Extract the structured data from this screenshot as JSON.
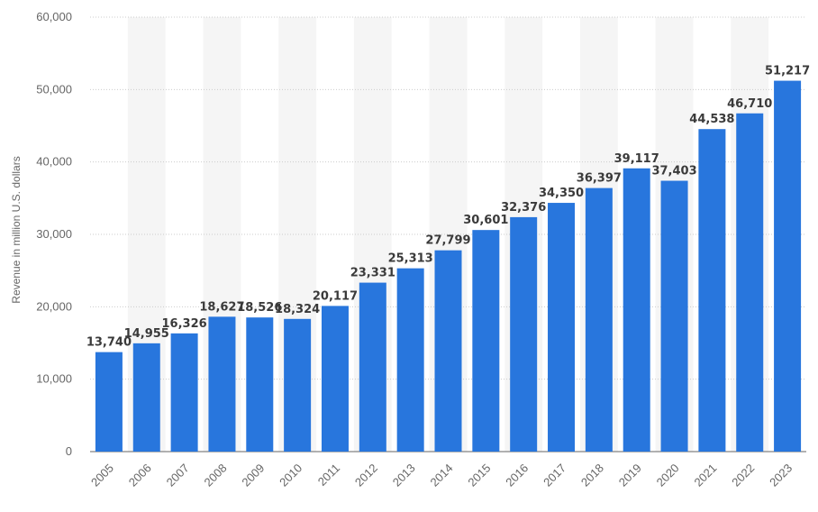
{
  "chart_data": {
    "type": "bar",
    "title": "",
    "xlabel": "",
    "ylabel": "Revenue in million U.S. dollars",
    "ylim": [
      0,
      60000
    ],
    "yticks": [
      0,
      10000,
      20000,
      30000,
      40000,
      50000,
      60000
    ],
    "ytick_labels": [
      "0",
      "10,000",
      "20,000",
      "30,000",
      "40,000",
      "50,000",
      "60,000"
    ],
    "grid": true,
    "legend": "none",
    "categories": [
      "2005",
      "2006",
      "2007",
      "2008",
      "2009",
      "2010",
      "2011",
      "2012",
      "2013",
      "2014",
      "2015",
      "2016",
      "2017",
      "2018",
      "2019",
      "2020",
      "2021",
      "2022",
      "2023"
    ],
    "values": [
      13740,
      14955,
      16326,
      18627,
      18526,
      18324,
      20117,
      23331,
      25313,
      27799,
      30601,
      32376,
      34350,
      36397,
      39117,
      37403,
      44538,
      46710,
      51217
    ],
    "value_labels": [
      "13,740",
      "14,955",
      "16,326",
      "18,627",
      "18,526",
      "18,324",
      "20,117",
      "23,331",
      "25,313",
      "27,799",
      "30,601",
      "32,376",
      "34,350",
      "36,397",
      "39,117",
      "37,403",
      "44,538",
      "46,710",
      "51,217"
    ],
    "colors": {
      "bar": "#2876dd",
      "band": "#f5f5f5",
      "grid": "#cccccc",
      "axis": "#666666"
    }
  }
}
